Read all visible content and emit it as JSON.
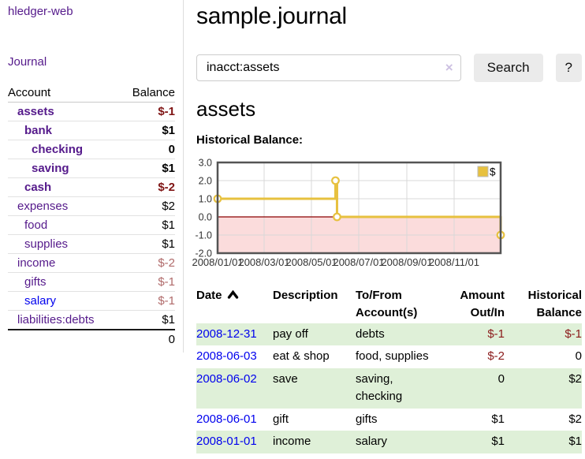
{
  "app": {
    "brand": "hledger-web",
    "nav_journal": "Journal"
  },
  "colors": {
    "link_visited": "#551A8B",
    "link_unvisited": "#0000EE",
    "negative_strong": "#7f1414",
    "negative_soft": "#b06a6a",
    "stripe_green": "#dff0d8",
    "chart_gold": "#e7c13f"
  },
  "sidebar": {
    "headers": {
      "account": "Account",
      "balance": "Balance"
    },
    "accounts": [
      {
        "name": "assets",
        "level": 1,
        "bold": true,
        "balance": "$-1",
        "balance_style": "neg-strong",
        "link": "visited"
      },
      {
        "name": "bank",
        "level": 2,
        "bold": true,
        "balance": "$1",
        "balance_style": "pos",
        "link": "visited"
      },
      {
        "name": "checking",
        "level": 3,
        "bold": true,
        "balance": "0",
        "balance_style": "pos",
        "link": "visited"
      },
      {
        "name": "saving",
        "level": 3,
        "bold": true,
        "balance": "$1",
        "balance_style": "pos",
        "link": "visited"
      },
      {
        "name": "cash",
        "level": 2,
        "bold": true,
        "balance": "$-2",
        "balance_style": "neg-strong",
        "link": "visited"
      },
      {
        "name": "expenses",
        "level": 1,
        "bold": false,
        "balance": "$2",
        "balance_style": "pos",
        "link": "visited"
      },
      {
        "name": "food",
        "level": 2,
        "bold": false,
        "balance": "$1",
        "balance_style": "pos",
        "link": "visited"
      },
      {
        "name": "supplies",
        "level": 2,
        "bold": false,
        "balance": "$1",
        "balance_style": "pos",
        "link": "visited"
      },
      {
        "name": "income",
        "level": 1,
        "bold": false,
        "balance": "$-2",
        "balance_style": "neg-soft",
        "link": "visited"
      },
      {
        "name": "gifts",
        "level": 2,
        "bold": false,
        "balance": "$-1",
        "balance_style": "neg-soft",
        "link": "visited"
      },
      {
        "name": "salary",
        "level": 2,
        "bold": false,
        "balance": "$-1",
        "balance_style": "neg-soft",
        "link": "unvisited"
      },
      {
        "name": "liabilities:debts",
        "level": 1,
        "bold": false,
        "balance": "$1",
        "balance_style": "pos",
        "link": "visited"
      }
    ],
    "total": "0"
  },
  "header": {
    "title": "sample.journal"
  },
  "search": {
    "value": "inacct:assets",
    "clear_icon": "×",
    "button_label": "Search",
    "help_label": "?"
  },
  "account_page": {
    "heading": "assets",
    "chart_label": "Historical Balance:"
  },
  "chart_data": {
    "type": "line",
    "step": true,
    "title": "Historical Balance",
    "series": [
      {
        "name": "$",
        "color": "#e7c13f",
        "points": [
          [
            "2008-01-01",
            1.0
          ],
          [
            "2008-06-01",
            2.0
          ],
          [
            "2008-06-03",
            0.0
          ],
          [
            "2008-12-31",
            -1.0
          ]
        ]
      }
    ],
    "xlim": [
      "2008-01-01",
      "2008-12-31"
    ],
    "ylim": [
      -2,
      3
    ],
    "x_ticks": [
      {
        "date": "2008-01-01",
        "label": "2008/01/01"
      },
      {
        "date": "2008-03-01",
        "label": "2008/03/01"
      },
      {
        "date": "2008-05-01",
        "label": "2008/05/01"
      },
      {
        "date": "2008-07-01",
        "label": "2008/07/01"
      },
      {
        "date": "2008-09-01",
        "label": "2008/09/01"
      },
      {
        "date": "2008-11-01",
        "label": "2008/11/01"
      }
    ],
    "y_ticks": [
      "3.0",
      "2.0",
      "1.0",
      "0.0",
      "-1.0",
      "-2.0"
    ],
    "grid": true,
    "legend": {
      "position": "top-right",
      "label": "$"
    },
    "negative_region_fill": "#fbdcdc",
    "zero_line_color": "#8b0000",
    "plot_border_color": "#545454",
    "gridline_color": "#d8d8d8"
  },
  "register": {
    "headers": {
      "date": "Date",
      "description": "Description",
      "accounts": "To/From Account(s)",
      "amount": "Amount Out/In",
      "balance": "Historical Balance"
    },
    "rows": [
      {
        "date": "2008-12-31",
        "description": "pay off",
        "accounts": "debts",
        "amount": "$-1",
        "amount_neg": true,
        "balance": "$-1",
        "balance_neg": true
      },
      {
        "date": "2008-06-03",
        "description": "eat & shop",
        "accounts": "food, supplies",
        "amount": "$-2",
        "amount_neg": true,
        "balance": "0",
        "balance_neg": false
      },
      {
        "date": "2008-06-02",
        "description": "save",
        "accounts": "saving, checking",
        "amount": "0",
        "amount_neg": false,
        "balance": "$2",
        "balance_neg": false
      },
      {
        "date": "2008-06-01",
        "description": "gift",
        "accounts": "gifts",
        "amount": "$1",
        "amount_neg": false,
        "balance": "$2",
        "balance_neg": false
      },
      {
        "date": "2008-01-01",
        "description": "income",
        "accounts": "salary",
        "amount": "$1",
        "amount_neg": false,
        "balance": "$1",
        "balance_neg": false
      }
    ]
  }
}
